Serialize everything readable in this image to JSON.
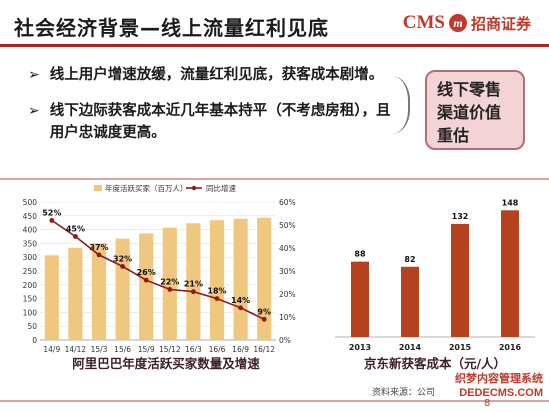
{
  "header": {
    "title": "社会经济背景—线上流量红利见底",
    "logo_text": "CMS",
    "logo_mark": "m",
    "logo_cn": "招商证券"
  },
  "bullets": [
    {
      "marker": "➢",
      "text": "线上用户增速放缓，流量红利见底，获客成本剧增。"
    },
    {
      "marker": "➢",
      "text": "线下边际获客成本近几年基本持平（不考虑房租），且用户忠诚度更高。"
    }
  ],
  "callout": {
    "text": "线下零售渠道价值重估"
  },
  "chart_data": [
    {
      "type": "bar",
      "categories": [
        "14/9",
        "14/12",
        "15/3",
        "15/6",
        "15/9",
        "15/12",
        "16/3",
        "16/6",
        "16/9",
        "16/12"
      ],
      "series": [
        {
          "name": "年度活跃买家（百万人）",
          "type": "bar",
          "axis": "left",
          "values": [
            307,
            334,
            350,
            367,
            386,
            407,
            423,
            434,
            439,
            443
          ]
        },
        {
          "name": "同比增速",
          "type": "line",
          "axis": "right",
          "values": [
            52,
            45,
            37,
            32,
            26,
            22,
            21,
            18,
            14,
            9
          ],
          "labels": [
            "52%",
            "45%",
            "37%",
            "32%",
            "26%",
            "22%",
            "21%",
            "18%",
            "14%",
            "9%"
          ]
        }
      ],
      "y_left": {
        "ticks": [
          0,
          50,
          100,
          150,
          200,
          250,
          300,
          350,
          400,
          450,
          500
        ],
        "ylim": [
          0,
          500
        ]
      },
      "y_right": {
        "ticks": [
          "0%",
          "10%",
          "20%",
          "30%",
          "40%",
          "50%",
          "60%"
        ],
        "ylim": [
          0,
          60
        ]
      },
      "title": "阿里巴巴年度活跃买家数量及增速",
      "legend": "top",
      "colors": {
        "bar": "#f0c77f",
        "line": "#8b1a1a"
      }
    },
    {
      "type": "bar",
      "categories": [
        "2013",
        "2014",
        "2015",
        "2016"
      ],
      "values": [
        88,
        82,
        132,
        148
      ],
      "value_labels": [
        "88",
        "82",
        "132",
        "148"
      ],
      "ylim": [
        0,
        160
      ],
      "title": "京东新获客成本（元/人）",
      "colors": {
        "bar": "#b5421f"
      }
    }
  ],
  "footer": {
    "source": "资料来源：公司",
    "page": "8",
    "watermark_line1": "织梦内容管理系统",
    "watermark_line2": "DEDECMS.COM"
  }
}
